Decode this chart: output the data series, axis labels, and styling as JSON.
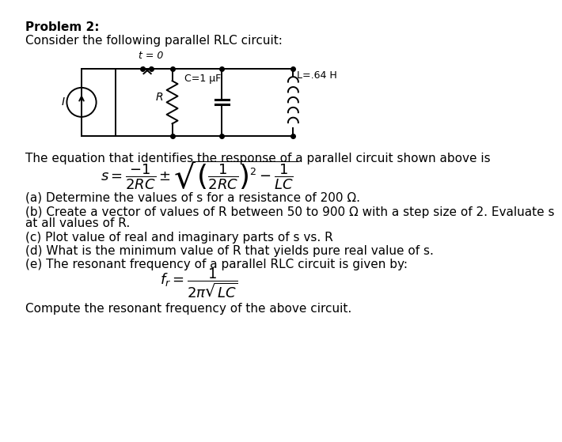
{
  "background_color": "#ffffff",
  "title_bold": "Problem 2:",
  "line1": "Consider the following parallel RLC circuit:",
  "circuit_label_t": "t = 0",
  "circuit_label_I": "I",
  "circuit_label_R": "R",
  "circuit_label_C": "C=1 μF",
  "circuit_label_L": "L=.64 H",
  "equation_intro": "The equation that identifies the response of a parallel circuit shown above is",
  "equation": "$s = \\dfrac{-1}{2RC} \\pm \\sqrt{\\left(\\dfrac{1}{2RC}\\right)^{2} - \\dfrac{1}{LC}}$",
  "part_a": "(a) Determine the values of s for a resistance of 200 Ω.",
  "part_b_1": "(b) Create a vector of values of R between 50 to 900 Ω with a step size of 2. Evaluate s",
  "part_b_2": "at all values of R.",
  "part_c": "(c) Plot value of real and imaginary parts of s vs. R",
  "part_d": "(d) What is the minimum value of R that yields pure real value of s.",
  "part_e_intro": "(e) The resonant frequency of a parallel RLC circuit is given by:",
  "equation_fr": "$f_r = \\dfrac{1}{2\\pi\\sqrt{LC}}$",
  "last_line": "Compute the resonant frequency of the above circuit.",
  "font_size_body": 11,
  "font_size_bold": 11,
  "font_size_eq": 13
}
